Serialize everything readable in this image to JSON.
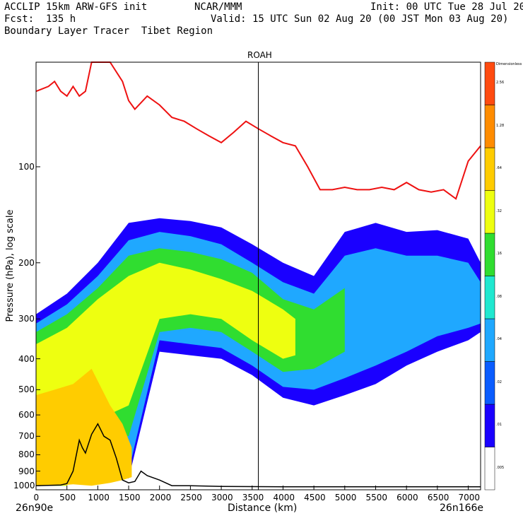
{
  "header": {
    "model": "ACCLIP 15km ARW-GFS init",
    "org": "NCAR/MMM",
    "init": "Init: 00 UTC Tue 28 Jul 20",
    "fcst": "Fcst:  135 h",
    "valid": "Valid: 15 UTC Sun 02 Aug 20 (00 JST Mon 03 Aug 20)",
    "field": "Boundary Layer Tracer  Tibet Region"
  },
  "chart_data": {
    "type": "cross-section",
    "title": "ROAH",
    "xlabel": "Distance (km)",
    "ylabel": "Pressure (hPa), log scale",
    "xlim": [
      0,
      7200
    ],
    "ylim": [
      1030,
      47
    ],
    "x_ticks": [
      "0",
      "500",
      "1000",
      "1500",
      "2000",
      "2500",
      "3000",
      "3500",
      "4000",
      "4500",
      "5000",
      "5500",
      "6000",
      "6500",
      "7000"
    ],
    "x_tick_values": [
      0,
      500,
      1000,
      1500,
      2000,
      2500,
      3000,
      3500,
      4000,
      4500,
      5000,
      5500,
      6000,
      6500,
      7000
    ],
    "y_ticks": [
      "100",
      "200",
      "300",
      "400",
      "500",
      "600",
      "700",
      "800",
      "900",
      "1000"
    ],
    "y_tick_values": [
      100,
      200,
      300,
      400,
      500,
      600,
      700,
      800,
      900,
      1000
    ],
    "endpoints": {
      "left": "26n90e",
      "right": "26n166e"
    },
    "marker_line_x": 3600,
    "colorbar": {
      "title": "Dimensionless",
      "labels": [
        ".005",
        ".01",
        ".02",
        ".04",
        ".08",
        ".16",
        ".32",
        ".64",
        "1.28",
        "2.56"
      ],
      "colors": [
        "#ffffff",
        "#1a00ff",
        "#0a5cff",
        "#1fa8ff",
        "#20e8d0",
        "#30dd30",
        "#eeff10",
        "#ffcc00",
        "#ff8c00",
        "#ff4b10"
      ]
    },
    "series": [
      {
        "name": "tropopause",
        "color": "#ee1111",
        "x": [
          0,
          200,
          300,
          400,
          500,
          600,
          700,
          800,
          900,
          1000,
          1100,
          1200,
          1400,
          1500,
          1600,
          1800,
          2000,
          2200,
          2400,
          2600,
          2800,
          3000,
          3200,
          3400,
          3600,
          3800,
          4000,
          4200,
          4400,
          4600,
          4800,
          5000,
          5200,
          5400,
          5600,
          5800,
          6000,
          6200,
          6400,
          6600,
          6800,
          7000,
          7200
        ],
        "y": [
          58,
          56,
          54,
          58,
          60,
          56,
          60,
          58,
          45,
          42,
          44,
          46,
          54,
          62,
          66,
          60,
          64,
          70,
          72,
          76,
          80,
          84,
          78,
          72,
          76,
          80,
          84,
          86,
          100,
          118,
          118,
          116,
          118,
          118,
          116,
          118,
          112,
          118,
          120,
          118,
          126,
          96,
          86
        ]
      },
      {
        "name": "terrain",
        "color": "#000000",
        "x": [
          0,
          400,
          500,
          600,
          700,
          750,
          800,
          900,
          1000,
          1100,
          1200,
          1300,
          1400,
          1500,
          1600,
          1700,
          1800,
          2000,
          2200,
          2500,
          3000,
          4000,
          5000,
          6000,
          7200
        ],
        "y": [
          1000,
          995,
          985,
          900,
          720,
          760,
          790,
          690,
          640,
          700,
          720,
          820,
          960,
          980,
          970,
          900,
          930,
          960,
          1000,
          1000,
          1005,
          1008,
          1008,
          1008,
          1008
        ]
      },
      {
        "name": "tracer .01",
        "x": [
          0,
          500,
          1000,
          1500,
          2000,
          2500,
          3000,
          3500,
          4000,
          4500,
          5000,
          5500,
          6000,
          6500,
          7000,
          7200
        ],
        "top": [
          290,
          250,
          200,
          150,
          145,
          148,
          155,
          175,
          200,
          220,
          160,
          150,
          160,
          158,
          168,
          200
        ],
        "bottom": [
          1000,
          1000,
          700,
          950,
          380,
          390,
          400,
          450,
          530,
          560,
          520,
          480,
          420,
          380,
          350,
          330
        ]
      },
      {
        "name": "tracer .04",
        "x": [
          0,
          500,
          1000,
          1500,
          2000,
          2500,
          3000,
          3500,
          4000,
          4500,
          5000,
          5500,
          6000,
          6500,
          7000,
          7200
        ],
        "top": [
          310,
          270,
          220,
          170,
          160,
          165,
          175,
          200,
          230,
          250,
          190,
          180,
          190,
          190,
          200,
          230
        ],
        "bottom": [
          1000,
          1000,
          680,
          900,
          350,
          360,
          370,
          420,
          490,
          500,
          460,
          420,
          380,
          340,
          320,
          310
        ]
      },
      {
        "name": "tracer .16",
        "x": [
          0,
          500,
          1000,
          1500,
          2000,
          2500,
          3000,
          3500,
          4000,
          4500,
          5000
        ],
        "top": [
          330,
          290,
          240,
          190,
          180,
          185,
          195,
          215,
          260,
          280,
          240
        ],
        "bottom": [
          1000,
          1000,
          650,
          700,
          330,
          320,
          330,
          380,
          440,
          430,
          380
        ]
      },
      {
        "name": "tracer .32",
        "x": [
          0,
          500,
          1000,
          1500,
          2000,
          2500,
          3000,
          3500,
          4000,
          4200
        ],
        "top": [
          360,
          320,
          260,
          220,
          200,
          210,
          225,
          245,
          280,
          300
        ],
        "bottom": [
          1000,
          1000,
          620,
          560,
          300,
          290,
          300,
          350,
          400,
          390
        ]
      },
      {
        "name": "tracer .64",
        "x": [
          0,
          300,
          600,
          900,
          1200,
          1400,
          1550
        ],
        "top": [
          520,
          500,
          480,
          430,
          560,
          640,
          760
        ],
        "bottom": [
          1000,
          1000,
          990,
          1000,
          980,
          960,
          940
        ]
      }
    ]
  }
}
